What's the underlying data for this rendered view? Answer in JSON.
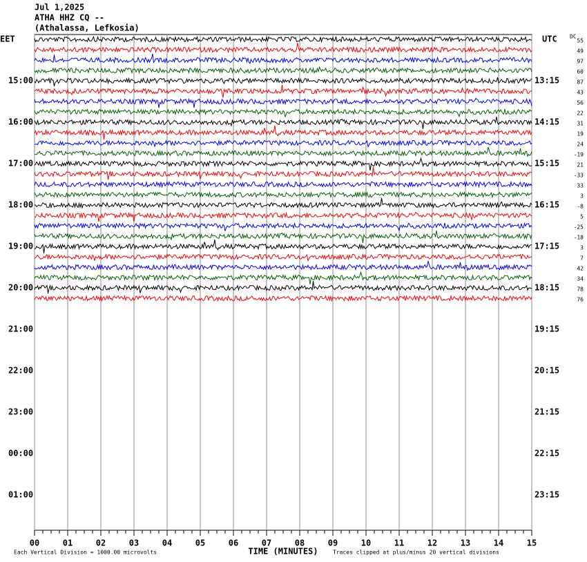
{
  "header": {
    "date": "Jul 1,2025",
    "station": "ATHA HHZ CQ --",
    "location": "(Athalassa, Lefkosia)"
  },
  "chart_data": {
    "type": "helicorder",
    "left_label": "EET",
    "right_label": "UTC",
    "dc_label": "DC",
    "left_times": [
      "15:00",
      "16:00",
      "17:00",
      "18:00",
      "19:00",
      "20:00",
      "21:00",
      "22:00",
      "23:00",
      "00:00",
      "01:00"
    ],
    "right_times": [
      "13:15",
      "14:15",
      "15:15",
      "16:15",
      "17:15",
      "18:15",
      "19:15",
      "20:15",
      "21:15",
      "22:15",
      "23:15"
    ],
    "dc_offsets": [
      55,
      49,
      97,
      60,
      87,
      43,
      56,
      22,
      31,
      19,
      24,
      -19,
      21,
      -33,
      33,
      3,
      -8,
      5,
      -25,
      -18,
      3,
      7,
      42,
      34,
      78,
      76
    ],
    "colors": [
      "#000000",
      "#ff0000",
      "#0000ff",
      "#006400"
    ],
    "xlim": [
      0,
      15
    ],
    "xticks": [
      {
        "value": 0,
        "label": "00"
      },
      {
        "value": 1,
        "label": "01"
      },
      {
        "value": 2,
        "label": "02"
      },
      {
        "value": 3,
        "label": "03"
      },
      {
        "value": 4,
        "label": "04"
      },
      {
        "value": 5,
        "label": "05"
      },
      {
        "value": 6,
        "label": "06"
      },
      {
        "value": 7,
        "label": "07"
      },
      {
        "value": 8,
        "label": "08"
      },
      {
        "value": 9,
        "label": "09"
      },
      {
        "value": 10,
        "label": "10"
      },
      {
        "value": 11,
        "label": "11"
      },
      {
        "value": 12,
        "label": "12"
      },
      {
        "value": 13,
        "label": "13"
      },
      {
        "value": 14,
        "label": "14"
      },
      {
        "value": 15,
        "label": "15"
      }
    ],
    "xlabel": "TIME (MINUTES)",
    "footer_left": "Each Vertical Division = 1000.00 microvolts",
    "footer_right": "Traces clipped at plus/minus 20 vertical divisions"
  }
}
